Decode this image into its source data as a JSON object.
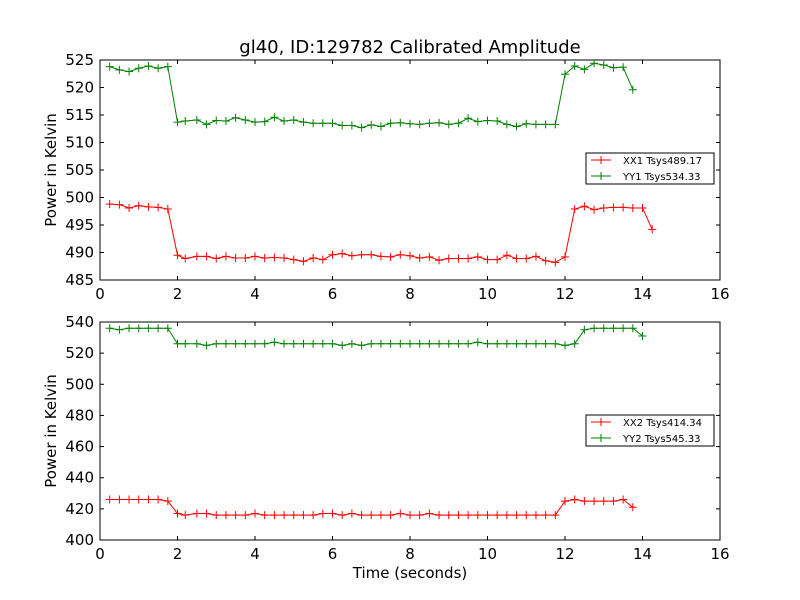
{
  "chart_data": [
    {
      "type": "line",
      "title": "gl40, ID:129782 Calibrated Amplitude",
      "xlabel": "",
      "ylabel": "Power in Kelvin",
      "xlim": [
        0,
        16
      ],
      "ylim": [
        485,
        525
      ],
      "xticks": [
        0,
        2,
        4,
        6,
        8,
        10,
        12,
        14,
        16
      ],
      "yticks": [
        485,
        490,
        495,
        500,
        505,
        510,
        515,
        520,
        525
      ],
      "grid": false,
      "legend_position": "right",
      "x": [
        0.25,
        0.5,
        0.75,
        1.0,
        1.25,
        1.5,
        1.75,
        2.0,
        2.2,
        2.5,
        2.75,
        3.0,
        3.25,
        3.5,
        3.75,
        4.0,
        4.25,
        4.5,
        4.75,
        5.0,
        5.25,
        5.5,
        5.75,
        6.0,
        6.25,
        6.5,
        6.75,
        7.0,
        7.25,
        7.5,
        7.75,
        8.0,
        8.25,
        8.5,
        8.75,
        9.0,
        9.25,
        9.5,
        9.75,
        10.0,
        10.25,
        10.5,
        10.75,
        11.0,
        11.25,
        11.5,
        11.75,
        12.0,
        12.25,
        12.5,
        12.75,
        13.0,
        13.25,
        13.5,
        13.75,
        14.0,
        14.25,
        14.5,
        14.75,
        15.0
      ],
      "series": [
        {
          "name": "XX1 Tsys489.17",
          "color": "#ff0000",
          "values": [
            498.8,
            498.7,
            498.1,
            498.5,
            498.3,
            498.2,
            497.9,
            489.5,
            488.9,
            489.3,
            489.3,
            488.9,
            489.3,
            489.0,
            489.0,
            489.3,
            489.0,
            489.1,
            489.0,
            488.7,
            488.4,
            489.0,
            488.7,
            489.6,
            489.8,
            489.4,
            489.6,
            489.6,
            489.3,
            489.2,
            489.6,
            489.4,
            489.0,
            489.2,
            488.6,
            488.9,
            488.9,
            488.9,
            489.2,
            488.7,
            488.7,
            489.5,
            488.9,
            488.9,
            489.3,
            488.5,
            488.2,
            489.2,
            497.9,
            498.4,
            497.8,
            498.1,
            498.2,
            498.2,
            498.1,
            498.1,
            494.2,
            null,
            null,
            null
          ],
          "plot_x_offset": 0
        },
        {
          "name": "YY1 Tsys534.33",
          "color": "#008000",
          "values": [
            523.8,
            523.2,
            522.9,
            523.5,
            523.9,
            523.5,
            523.8,
            513.7,
            513.9,
            514.1,
            513.3,
            514.0,
            513.9,
            514.5,
            514.1,
            513.7,
            513.8,
            514.6,
            513.9,
            514.1,
            513.7,
            513.5,
            513.5,
            513.5,
            513.1,
            513.1,
            512.7,
            513.2,
            512.9,
            513.5,
            513.6,
            513.4,
            513.3,
            513.5,
            513.6,
            513.3,
            513.5,
            514.4,
            513.8,
            514.0,
            513.9,
            513.3,
            512.9,
            513.4,
            513.3,
            513.3,
            513.3,
            522.4,
            523.9,
            523.3,
            524.4,
            524.1,
            523.6,
            523.7,
            519.6,
            null,
            null,
            null,
            null,
            null
          ],
          "plot_x_offset": 0
        }
      ]
    },
    {
      "type": "line",
      "title": "",
      "xlabel": "Time (seconds)",
      "ylabel": "Power in Kelvin",
      "xlim": [
        0,
        16
      ],
      "ylim": [
        400,
        540
      ],
      "xticks": [
        0,
        2,
        4,
        6,
        8,
        10,
        12,
        14,
        16
      ],
      "yticks": [
        400,
        420,
        440,
        460,
        480,
        500,
        520,
        540
      ],
      "grid": false,
      "legend_position": "right",
      "x": [
        0.25,
        0.5,
        0.75,
        1.0,
        1.25,
        1.5,
        1.75,
        2.0,
        2.2,
        2.5,
        2.75,
        3.0,
        3.25,
        3.5,
        3.75,
        4.0,
        4.25,
        4.5,
        4.75,
        5.0,
        5.25,
        5.5,
        5.75,
        6.0,
        6.25,
        6.5,
        6.75,
        7.0,
        7.25,
        7.5,
        7.75,
        8.0,
        8.25,
        8.5,
        8.75,
        9.0,
        9.25,
        9.5,
        9.75,
        10.0,
        10.25,
        10.5,
        10.75,
        11.0,
        11.25,
        11.5,
        11.75,
        12.0,
        12.25,
        12.5,
        12.75,
        13.0,
        13.25,
        13.5,
        13.75,
        14.0,
        14.25,
        14.5,
        14.75,
        15.0
      ],
      "series": [
        {
          "name": "XX2 Tsys414.34",
          "color": "#ff0000",
          "values": [
            426,
            426,
            426,
            426,
            426,
            426,
            425,
            417,
            416,
            417,
            417,
            416,
            416,
            416,
            416,
            417,
            416,
            416,
            416,
            416,
            416,
            416,
            417,
            417,
            416,
            417,
            416,
            416,
            416,
            416,
            417,
            416,
            416,
            417,
            416,
            416,
            416,
            416,
            416,
            416,
            416,
            416,
            416,
            416,
            416,
            416,
            416,
            425,
            426,
            425,
            425,
            425,
            425,
            426,
            421,
            null,
            null,
            null,
            null,
            null
          ],
          "plot_x_offset": 0
        },
        {
          "name": "YY2 Tsys545.33",
          "color": "#008000",
          "values": [
            536,
            535,
            536,
            536,
            536,
            536,
            536,
            526,
            526,
            526,
            525,
            526,
            526,
            526,
            526,
            526,
            526,
            527,
            526,
            526,
            526,
            526,
            526,
            526,
            525,
            526,
            525,
            526,
            526,
            526,
            526,
            526,
            526,
            526,
            526,
            526,
            526,
            526,
            527,
            526,
            526,
            526,
            526,
            526,
            526,
            526,
            526,
            525,
            526,
            535,
            536,
            536,
            536,
            536,
            536,
            531,
            null,
            null,
            null,
            null
          ],
          "plot_x_offset": 0
        }
      ]
    }
  ]
}
